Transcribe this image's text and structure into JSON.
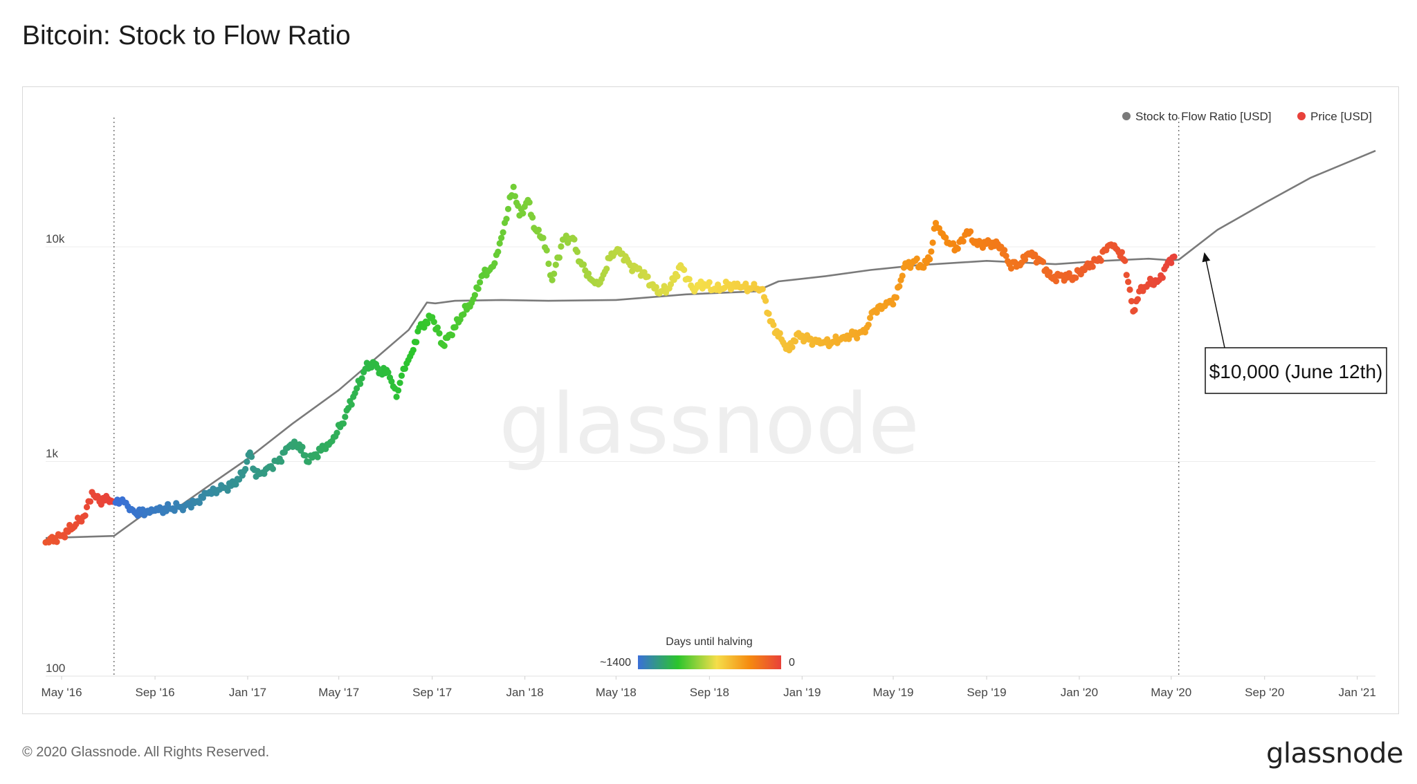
{
  "title": "Bitcoin: Stock to Flow Ratio",
  "footer": {
    "copyright": "© 2020 Glassnode. All Rights Reserved.",
    "logo": "glassnode"
  },
  "watermark": "glassnode",
  "colors": {
    "model_line": "#7a7a7a",
    "price_legend": "#e8413a",
    "gradient": [
      "#3a6fd8",
      "#2cc52c",
      "#f5de4a",
      "#f58a10",
      "#e8413a"
    ]
  },
  "chart_data": {
    "type": "scatter",
    "title": "Bitcoin: Stock to Flow Ratio",
    "xlabel": "",
    "ylabel": "",
    "yscale": "log",
    "ylim": [
      100,
      40000
    ],
    "xlim": [
      "2016-04-10",
      "2021-01-25"
    ],
    "grid": true,
    "legend_position": "top-right",
    "y_ticks": [
      {
        "value": 100,
        "label": "100"
      },
      {
        "value": 1000,
        "label": "1k"
      },
      {
        "value": 10000,
        "label": "10k"
      }
    ],
    "x_ticks": [
      {
        "date": "2016-05-01",
        "label": "May '16"
      },
      {
        "date": "2016-09-01",
        "label": "Sep '16"
      },
      {
        "date": "2017-01-01",
        "label": "Jan '17"
      },
      {
        "date": "2017-05-01",
        "label": "May '17"
      },
      {
        "date": "2017-09-01",
        "label": "Sep '17"
      },
      {
        "date": "2018-01-01",
        "label": "Jan '18"
      },
      {
        "date": "2018-05-01",
        "label": "May '18"
      },
      {
        "date": "2018-09-01",
        "label": "Sep '18"
      },
      {
        "date": "2019-01-01",
        "label": "Jan '19"
      },
      {
        "date": "2019-05-01",
        "label": "May '19"
      },
      {
        "date": "2019-09-01",
        "label": "Sep '19"
      },
      {
        "date": "2020-01-01",
        "label": "Jan '20"
      },
      {
        "date": "2020-05-01",
        "label": "May '20"
      },
      {
        "date": "2020-09-01",
        "label": "Sep '20"
      },
      {
        "date": "2021-01-01",
        "label": "Jan '21"
      }
    ],
    "halving_lines": [
      "2016-07-09",
      "2020-05-11"
    ],
    "series": [
      {
        "name": "Stock to Flow Ratio [USD]",
        "kind": "line",
        "color": "#7a7a7a",
        "points": [
          [
            "2016-04-10",
            440
          ],
          [
            "2016-07-09",
            450
          ],
          [
            "2016-08-15",
            560
          ],
          [
            "2016-10-01",
            610
          ],
          [
            "2016-11-15",
            790
          ],
          [
            "2017-01-01",
            1030
          ],
          [
            "2017-03-01",
            1500
          ],
          [
            "2017-05-01",
            2150
          ],
          [
            "2017-06-15",
            2950
          ],
          [
            "2017-08-01",
            4100
          ],
          [
            "2017-08-25",
            5500
          ],
          [
            "2017-09-05",
            5450
          ],
          [
            "2017-10-01",
            5600
          ],
          [
            "2017-12-01",
            5650
          ],
          [
            "2018-02-01",
            5600
          ],
          [
            "2018-05-01",
            5650
          ],
          [
            "2018-08-01",
            6000
          ],
          [
            "2018-11-01",
            6200
          ],
          [
            "2018-12-01",
            6900
          ],
          [
            "2019-02-01",
            7300
          ],
          [
            "2019-04-01",
            7800
          ],
          [
            "2019-06-01",
            8200
          ],
          [
            "2019-09-01",
            8600
          ],
          [
            "2019-12-01",
            8300
          ],
          [
            "2020-02-01",
            8600
          ],
          [
            "2020-04-01",
            8800
          ],
          [
            "2020-05-01",
            8650
          ],
          [
            "2020-05-11",
            8700
          ],
          [
            "2020-07-01",
            12000
          ],
          [
            "2020-09-01",
            16000
          ],
          [
            "2020-11-01",
            21000
          ],
          [
            "2021-01-25",
            28000
          ]
        ]
      },
      {
        "name": "Price [USD]",
        "kind": "scatter",
        "color": "#e8413a",
        "color_scale": {
          "title": "Days until halving",
          "min_label": "~1400",
          "max_label": "0",
          "reference_date": "2020-05-11"
        },
        "points": [
          [
            "2016-04-10",
            420
          ],
          [
            "2016-05-01",
            450
          ],
          [
            "2016-05-20",
            510
          ],
          [
            "2016-06-01",
            560
          ],
          [
            "2016-06-10",
            720
          ],
          [
            "2016-06-15",
            680
          ],
          [
            "2016-06-20",
            650
          ],
          [
            "2016-07-01",
            670
          ],
          [
            "2016-07-09",
            650
          ],
          [
            "2016-07-20",
            665
          ],
          [
            "2016-08-01",
            600
          ],
          [
            "2016-08-05",
            580
          ],
          [
            "2016-08-20",
            575
          ],
          [
            "2016-09-01",
            590
          ],
          [
            "2016-09-20",
            605
          ],
          [
            "2016-10-10",
            620
          ],
          [
            "2016-10-25",
            650
          ],
          [
            "2016-11-10",
            710
          ],
          [
            "2016-11-25",
            740
          ],
          [
            "2016-12-10",
            770
          ],
          [
            "2016-12-25",
            860
          ],
          [
            "2017-01-04",
            1100
          ],
          [
            "2017-01-12",
            850
          ],
          [
            "2017-01-25",
            920
          ],
          [
            "2017-02-10",
            1000
          ],
          [
            "2017-02-25",
            1180
          ],
          [
            "2017-03-10",
            1200
          ],
          [
            "2017-03-20",
            1000
          ],
          [
            "2017-04-01",
            1080
          ],
          [
            "2017-04-20",
            1230
          ],
          [
            "2017-05-05",
            1500
          ],
          [
            "2017-05-20",
            2000
          ],
          [
            "2017-06-05",
            2700
          ],
          [
            "2017-06-15",
            2900
          ],
          [
            "2017-06-25",
            2600
          ],
          [
            "2017-07-05",
            2600
          ],
          [
            "2017-07-16",
            2000
          ],
          [
            "2017-07-25",
            2700
          ],
          [
            "2017-08-05",
            3200
          ],
          [
            "2017-08-15",
            4200
          ],
          [
            "2017-09-01",
            4700
          ],
          [
            "2017-09-15",
            3500
          ],
          [
            "2017-09-25",
            3900
          ],
          [
            "2017-10-10",
            4800
          ],
          [
            "2017-10-25",
            5700
          ],
          [
            "2017-11-05",
            7300
          ],
          [
            "2017-11-20",
            8100
          ],
          [
            "2017-12-01",
            11000
          ],
          [
            "2017-12-10",
            15000
          ],
          [
            "2017-12-17",
            19000
          ],
          [
            "2017-12-25",
            14000
          ],
          [
            "2018-01-05",
            16500
          ],
          [
            "2018-01-15",
            12000
          ],
          [
            "2018-01-25",
            11000
          ],
          [
            "2018-02-06",
            7000
          ],
          [
            "2018-02-20",
            10800
          ],
          [
            "2018-03-05",
            11000
          ],
          [
            "2018-03-15",
            8500
          ],
          [
            "2018-03-30",
            7000
          ],
          [
            "2018-04-10",
            6800
          ],
          [
            "2018-04-25",
            9300
          ],
          [
            "2018-05-05",
            9700
          ],
          [
            "2018-05-20",
            8200
          ],
          [
            "2018-06-05",
            7600
          ],
          [
            "2018-06-25",
            6100
          ],
          [
            "2018-07-10",
            6400
          ],
          [
            "2018-07-25",
            8200
          ],
          [
            "2018-08-10",
            6400
          ],
          [
            "2018-08-25",
            6700
          ],
          [
            "2018-09-10",
            6300
          ],
          [
            "2018-09-25",
            6600
          ],
          [
            "2018-10-10",
            6500
          ],
          [
            "2018-11-01",
            6400
          ],
          [
            "2018-11-10",
            6350
          ],
          [
            "2018-11-20",
            4500
          ],
          [
            "2018-12-05",
            3700
          ],
          [
            "2018-12-15",
            3300
          ],
          [
            "2018-12-25",
            3900
          ],
          [
            "2019-01-10",
            3700
          ],
          [
            "2019-01-25",
            3550
          ],
          [
            "2019-02-10",
            3600
          ],
          [
            "2019-02-25",
            3800
          ],
          [
            "2019-03-10",
            3900
          ],
          [
            "2019-03-25",
            4000
          ],
          [
            "2019-04-05",
            5000
          ],
          [
            "2019-04-20",
            5300
          ],
          [
            "2019-05-05",
            5800
          ],
          [
            "2019-05-15",
            8000
          ],
          [
            "2019-05-30",
            8600
          ],
          [
            "2019-06-10",
            8000
          ],
          [
            "2019-06-20",
            9500
          ],
          [
            "2019-06-26",
            12900
          ],
          [
            "2019-07-05",
            11500
          ],
          [
            "2019-07-15",
            10300
          ],
          [
            "2019-07-25",
            9800
          ],
          [
            "2019-08-06",
            11800
          ],
          [
            "2019-08-20",
            10200
          ],
          [
            "2019-09-05",
            10500
          ],
          [
            "2019-09-20",
            10000
          ],
          [
            "2019-10-01",
            8300
          ],
          [
            "2019-10-15",
            8200
          ],
          [
            "2019-10-26",
            9300
          ],
          [
            "2019-11-10",
            8700
          ],
          [
            "2019-11-25",
            7200
          ],
          [
            "2019-12-10",
            7300
          ],
          [
            "2019-12-25",
            7200
          ],
          [
            "2020-01-10",
            8100
          ],
          [
            "2020-01-25",
            8600
          ],
          [
            "2020-02-10",
            10200
          ],
          [
            "2020-02-20",
            9700
          ],
          [
            "2020-03-01",
            8600
          ],
          [
            "2020-03-12",
            5000
          ],
          [
            "2020-03-20",
            6200
          ],
          [
            "2020-04-01",
            6700
          ],
          [
            "2020-04-15",
            7000
          ],
          [
            "2020-04-29",
            8700
          ],
          [
            "2020-05-05",
            9000
          ]
        ]
      }
    ],
    "annotation": {
      "text": "$10,000 (June 12th)",
      "point": [
        "2020-06-12",
        9300
      ],
      "box_position": "right"
    }
  }
}
